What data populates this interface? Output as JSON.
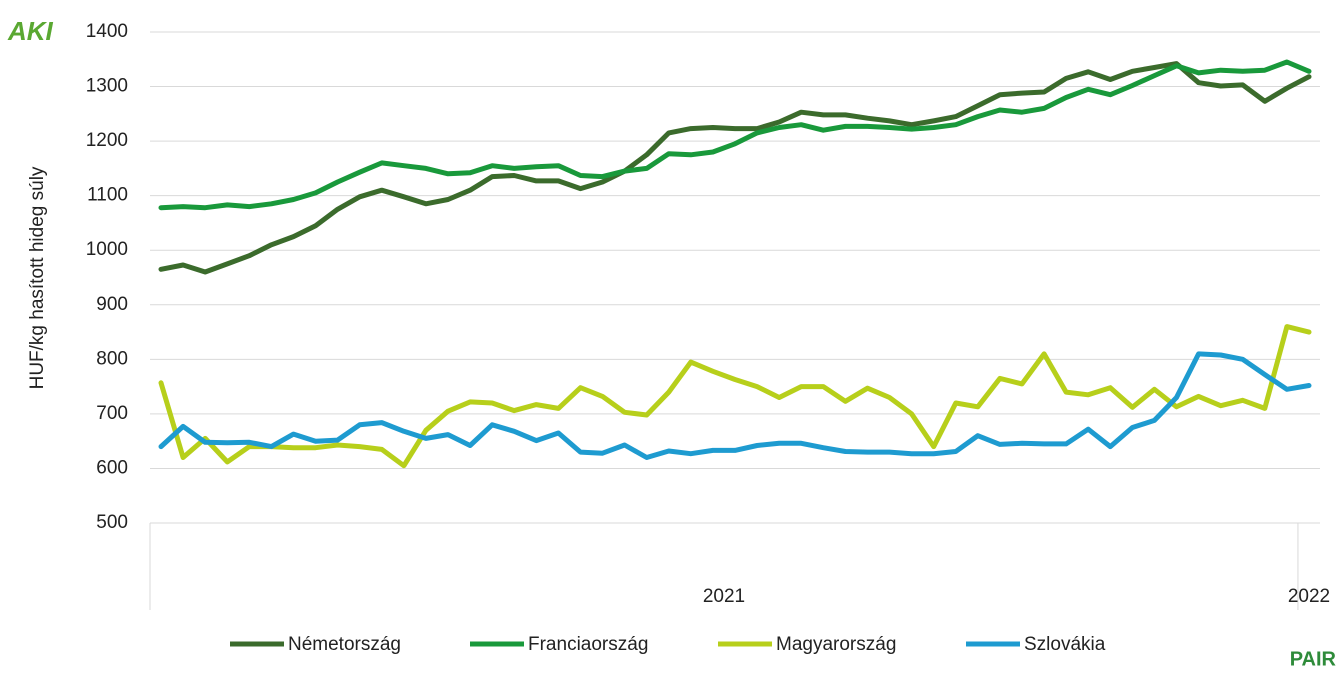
{
  "chart_data": {
    "type": "line",
    "y_axis_label": "HUF/kg hasított hideg súly",
    "logos": [
      "AKI",
      "PAIR"
    ],
    "categories": [
      null,
      null,
      null,
      null,
      null,
      null,
      null,
      null,
      null,
      null,
      null,
      null,
      null,
      null,
      null,
      null,
      null,
      null,
      null,
      null,
      null,
      null,
      null,
      null,
      null,
      null,
      null,
      null,
      null,
      null,
      null,
      null,
      null,
      null,
      null,
      null,
      null,
      null,
      null,
      null,
      null,
      null,
      null,
      null,
      null,
      null,
      null,
      null,
      null,
      null,
      null,
      null,
      null
    ],
    "category_groups": [
      {
        "label": "2021",
        "count": 52
      },
      {
        "label": "2022",
        "count": 1
      }
    ],
    "series": [
      {
        "name": "Németország",
        "color": "#3b6b2c",
        "values": [
          965,
          973,
          960,
          975,
          990,
          1010,
          1025,
          1045,
          1075,
          1098,
          1110,
          1098,
          1085,
          1093,
          1110,
          1135,
          1137,
          1127,
          1127,
          1113,
          1125,
          1145,
          1175,
          1215,
          1223,
          1225,
          1223,
          1223,
          1235,
          1253,
          1248,
          1248,
          1242,
          1237,
          1230,
          1237,
          1245,
          1265,
          1285,
          1288,
          1290,
          1315,
          1327,
          1313,
          1328,
          1335,
          1342,
          1307,
          1301,
          1303,
          1273,
          1297,
          1318
        ]
      },
      {
        "name": "Franciaország",
        "color": "#19993b",
        "values": [
          1078,
          1080,
          1078,
          1083,
          1080,
          1085,
          1093,
          1105,
          1125,
          1143,
          1160,
          1155,
          1150,
          1140,
          1142,
          1155,
          1150,
          1153,
          1155,
          1137,
          1135,
          1145,
          1150,
          1177,
          1175,
          1180,
          1195,
          1215,
          1225,
          1230,
          1220,
          1227,
          1227,
          1225,
          1222,
          1225,
          1230,
          1245,
          1257,
          1253,
          1260,
          1280,
          1295,
          1285,
          1302,
          1320,
          1338,
          1325,
          1330,
          1328,
          1330,
          1345,
          1328
        ]
      },
      {
        "name": "Magyarország",
        "color": "#b7cf1b",
        "values": [
          757,
          620,
          655,
          612,
          640,
          640,
          638,
          638,
          643,
          640,
          635,
          605,
          670,
          705,
          722,
          720,
          706,
          717,
          710,
          748,
          732,
          703,
          698,
          740,
          795,
          778,
          763,
          750,
          730,
          750,
          750,
          723,
          747,
          730,
          700,
          640,
          720,
          713,
          765,
          755,
          810,
          740,
          735,
          748,
          712,
          745,
          713,
          732,
          715,
          725,
          710,
          860,
          850
        ]
      },
      {
        "name": "Szlovákia",
        "color": "#1e9bd0",
        "values": [
          640,
          677,
          648,
          647,
          648,
          640,
          663,
          650,
          652,
          680,
          684,
          668,
          655,
          662,
          642,
          680,
          668,
          651,
          665,
          630,
          628,
          643,
          620,
          632,
          627,
          633,
          633,
          642,
          646,
          646,
          638,
          631,
          630,
          630,
          627,
          627,
          631,
          660,
          644,
          646,
          645,
          645,
          672,
          640,
          675,
          688,
          730,
          810,
          808,
          800,
          772,
          745,
          752
        ]
      }
    ],
    "ylim": [
      500,
      1400
    ],
    "yticks": [
      500,
      600,
      700,
      800,
      900,
      1000,
      1100,
      1200,
      1300,
      1400
    ],
    "grid": true,
    "legend": "bottom"
  }
}
